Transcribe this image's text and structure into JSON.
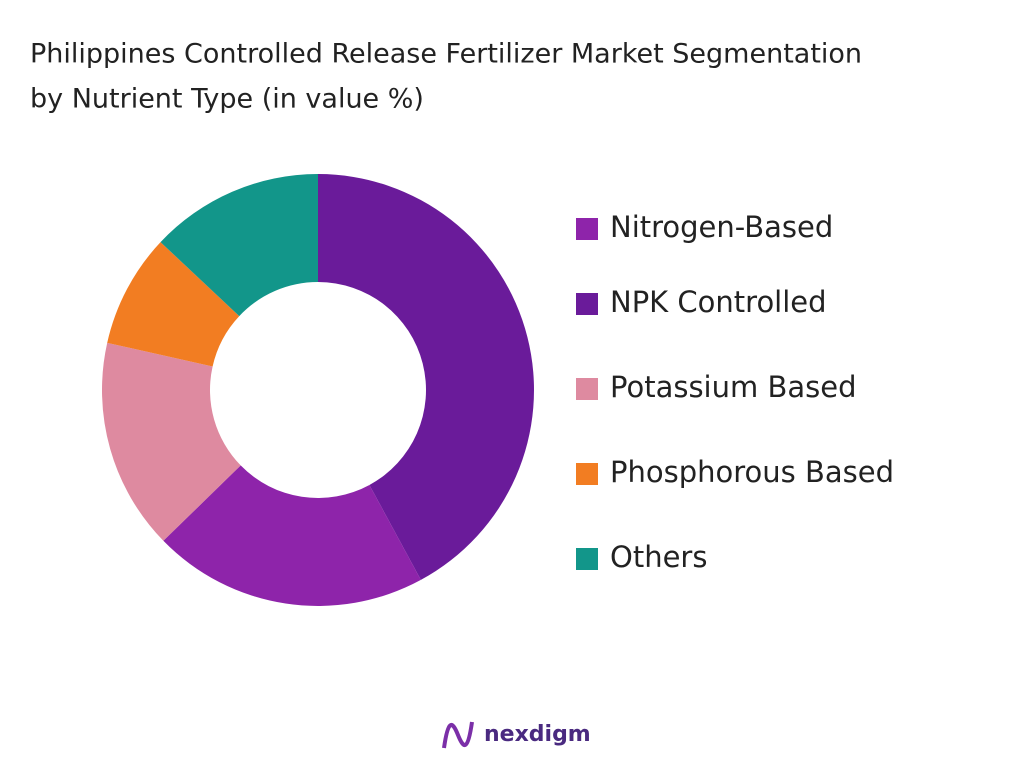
{
  "chart_data": {
    "type": "donut",
    "title": "Philippines Controlled Release Fertilizer Market Segmentation",
    "subtitle": "by Nutrient Type (in value %)",
    "categories": [
      "Nitrogen-Based",
      "NPK Controlled",
      "Potassium Based",
      "Phosphorous Based",
      "Others"
    ],
    "values": [
      20.6,
      42.1,
      15.8,
      8.5,
      13.0
    ],
    "colors": [
      "#8e24aa",
      "#6a1b9a",
      "#de8aa0",
      "#f27d22",
      "#12968a"
    ],
    "legend": "right"
  },
  "logo": "nexdigm"
}
